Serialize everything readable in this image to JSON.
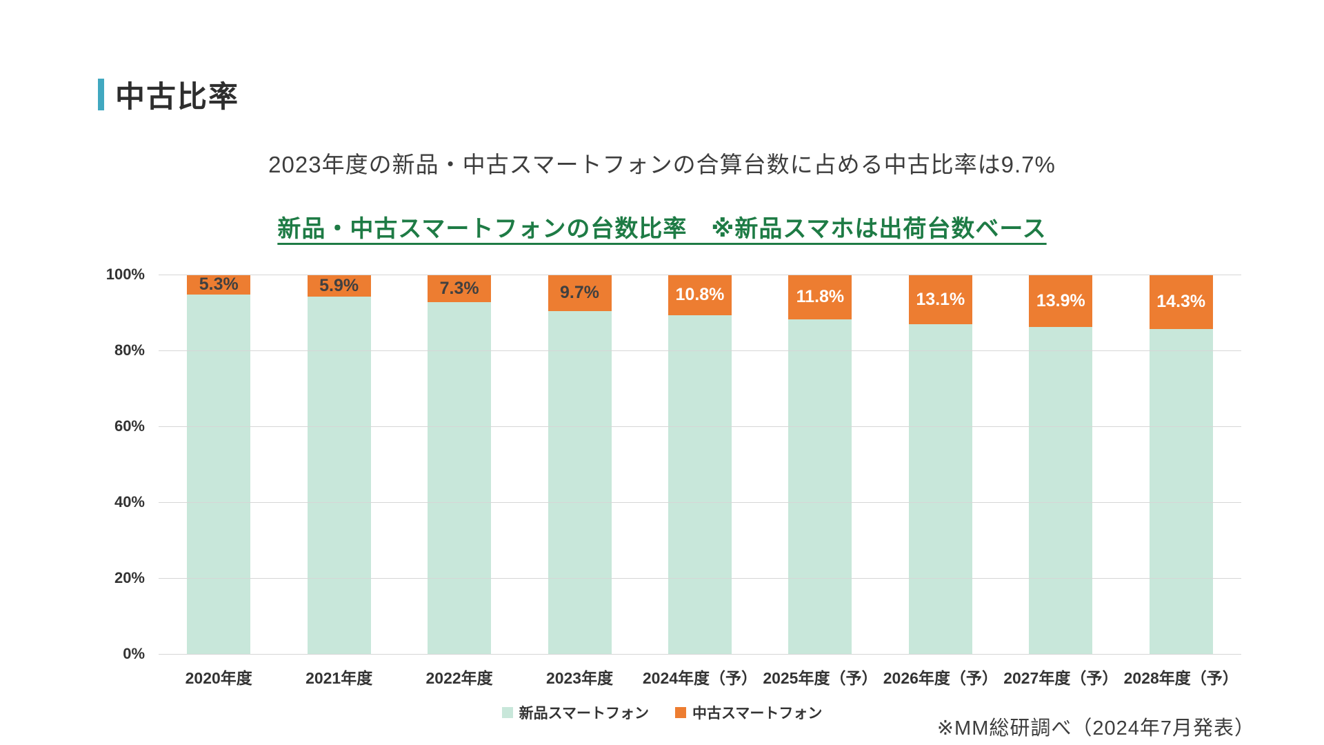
{
  "page": {
    "title": "中古比率",
    "subtitle": "2023年度の新品・中古スマートフォンの合算台数に占める中古比率は9.7%",
    "source_note": "※MM総研調べ（2024年7月発表）"
  },
  "colors": {
    "accent_bar": "#41a8c0",
    "chart_title_green": "#1e7b45",
    "new_segment": "#c8e7da",
    "used_segment": "#ed7d31",
    "gridline": "#d6d6d6"
  },
  "chart_data": {
    "type": "bar",
    "stacked": true,
    "stack_mode": "percent",
    "title": "新品・中古スマートフォンの台数比率　※新品スマホは出荷台数ベース",
    "categories": [
      "2020年度",
      "2021年度",
      "2022年度",
      "2023年度",
      "2024年度（予）",
      "2025年度（予）",
      "2026年度（予）",
      "2027年度（予）",
      "2028年度（予）"
    ],
    "series": [
      {
        "name": "新品スマートフォン",
        "color": "#c8e7da",
        "values": [
          94.7,
          94.1,
          92.7,
          90.3,
          89.2,
          88.2,
          86.9,
          86.1,
          85.7
        ]
      },
      {
        "name": "中古スマートフォン",
        "color": "#ed7d31",
        "values": [
          5.3,
          5.9,
          7.3,
          9.7,
          10.8,
          11.8,
          13.1,
          13.9,
          14.3
        ]
      }
    ],
    "data_labels": [
      "5.3%",
      "5.9%",
      "7.3%",
      "9.7%",
      "10.8%",
      "11.8%",
      "13.1%",
      "13.9%",
      "14.3%"
    ],
    "data_label_colors": [
      "#404040",
      "#404040",
      "#404040",
      "#404040",
      "#ffffff",
      "#ffffff",
      "#ffffff",
      "#ffffff",
      "#ffffff"
    ],
    "y_ticks": [
      "100%",
      "80%",
      "60%",
      "40%",
      "20%",
      "0%"
    ],
    "ylim": [
      0,
      100
    ],
    "grid": true,
    "legend_position": "bottom"
  }
}
